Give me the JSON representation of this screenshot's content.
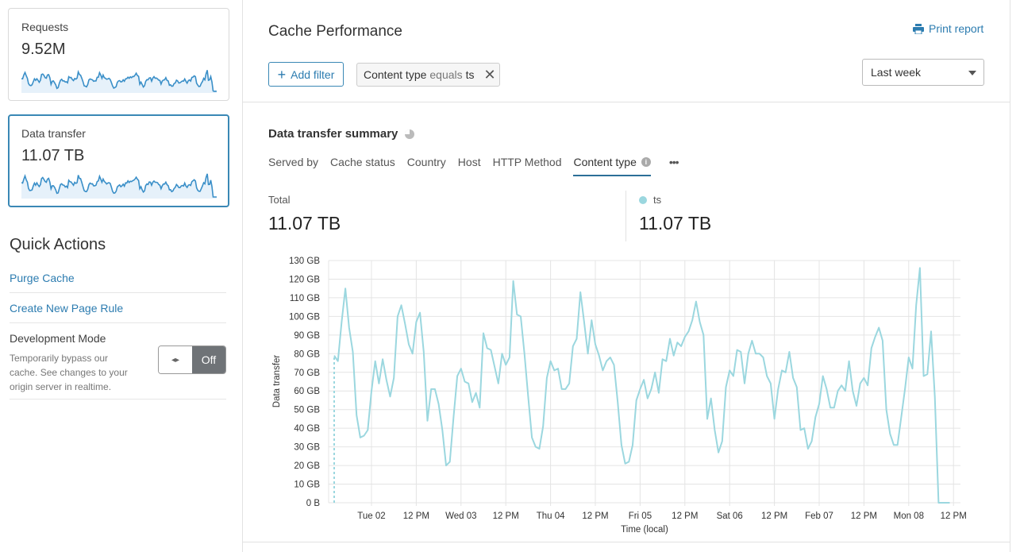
{
  "sidebar": {
    "cards": [
      {
        "label": "Requests",
        "value": "9.52M"
      },
      {
        "label": "Data transfer",
        "value": "11.07 TB"
      }
    ],
    "quick_actions": {
      "title": "Quick Actions",
      "links": [
        "Purge Cache",
        "Create New Page Rule"
      ],
      "dev_mode": {
        "title": "Development Mode",
        "description": "Temporarily bypass our cache. See changes to your origin server in realtime.",
        "toggle_icon": "◂▸",
        "state": "Off"
      }
    }
  },
  "header": {
    "title": "Cache Performance",
    "print_label": "Print report",
    "add_filter_label": "Add filter",
    "filter": {
      "field": "Content type",
      "operator": "equals",
      "value": "ts"
    },
    "time_range": "Last week"
  },
  "summary": {
    "title": "Data transfer summary",
    "tabs": [
      "Served by",
      "Cache status",
      "Country",
      "Host",
      "HTTP Method",
      "Content type"
    ],
    "active_tab": "Content type",
    "more": "•••",
    "total_label": "Total",
    "total_value": "11.07 TB",
    "series_label": "ts",
    "series_value": "11.07 TB",
    "series_color": "#9bd7df"
  },
  "chart_data": {
    "type": "line",
    "ylabel": "Data transfer",
    "xlabel": "Time (local)",
    "ylim": [
      0,
      130
    ],
    "y_unit": "GB",
    "y_ticks": [
      "0 B",
      "10 GB",
      "20 GB",
      "30 GB",
      "40 GB",
      "50 GB",
      "60 GB",
      "70 GB",
      "80 GB",
      "90 GB",
      "100 GB",
      "110 GB",
      "120 GB",
      "130 GB"
    ],
    "x_ticks": [
      {
        "label": "Tue 02",
        "time": "Feb 02 00:00"
      },
      {
        "label": "12 PM",
        "time": "Feb 02 12:00"
      },
      {
        "label": "Wed 03",
        "time": "Feb 03 00:00"
      },
      {
        "label": "12 PM",
        "time": "Feb 03 12:00"
      },
      {
        "label": "Thu 04",
        "time": "Feb 04 00:00"
      },
      {
        "label": "12 PM",
        "time": "Feb 04 12:00"
      },
      {
        "label": "Fri 05",
        "time": "Feb 05 00:00"
      },
      {
        "label": "12 PM",
        "time": "Feb 05 12:00"
      },
      {
        "label": "Sat 06",
        "time": "Feb 06 00:00"
      },
      {
        "label": "12 PM",
        "time": "Feb 06 12:00"
      },
      {
        "label": "Feb 07",
        "time": "Feb 07 00:00"
      },
      {
        "label": "12 PM",
        "time": "Feb 07 12:00"
      },
      {
        "label": "Mon 08",
        "time": "Feb 08 00:00"
      },
      {
        "label": "12 PM",
        "time": "Feb 08 12:00"
      }
    ],
    "grid": true,
    "series": [
      {
        "name": "ts",
        "color": "#9bd7df",
        "x_start": "Feb 01 14:00",
        "x_interval": "1 hour",
        "values": [
          79,
          76,
          97,
          115,
          94,
          81,
          47,
          35,
          36,
          39,
          60,
          76,
          64,
          77,
          66,
          57,
          67,
          100,
          106,
          96,
          85,
          80,
          97,
          102,
          81,
          44,
          61,
          61,
          53,
          39,
          20,
          22,
          46,
          68,
          72,
          65,
          64,
          54,
          59,
          51,
          91,
          83,
          82,
          73,
          64,
          80,
          74,
          78,
          119,
          101,
          100,
          80,
          57,
          35,
          30,
          29,
          41,
          67,
          76,
          71,
          72,
          61,
          61,
          64,
          84,
          88,
          113,
          97,
          80,
          98,
          85,
          79,
          71,
          76,
          78,
          74,
          54,
          31,
          21,
          22,
          31,
          55,
          61,
          66,
          56,
          61,
          70,
          59,
          77,
          76,
          88,
          79,
          86,
          84,
          89,
          92,
          98,
          108,
          97,
          90,
          45,
          56,
          39,
          27,
          33,
          62,
          71,
          68,
          82,
          81,
          64,
          80,
          87,
          80,
          80,
          78,
          68,
          64,
          45,
          61,
          71,
          70,
          81,
          67,
          62,
          39,
          40,
          29,
          33,
          46,
          53,
          68,
          61,
          51,
          51,
          60,
          63,
          60,
          76,
          60,
          52,
          64,
          67,
          63,
          83,
          89,
          94,
          87,
          50,
          37,
          31,
          31,
          46,
          61,
          78,
          72,
          106,
          126,
          68,
          69,
          92,
          57,
          0,
          0,
          0,
          0
        ]
      }
    ]
  }
}
